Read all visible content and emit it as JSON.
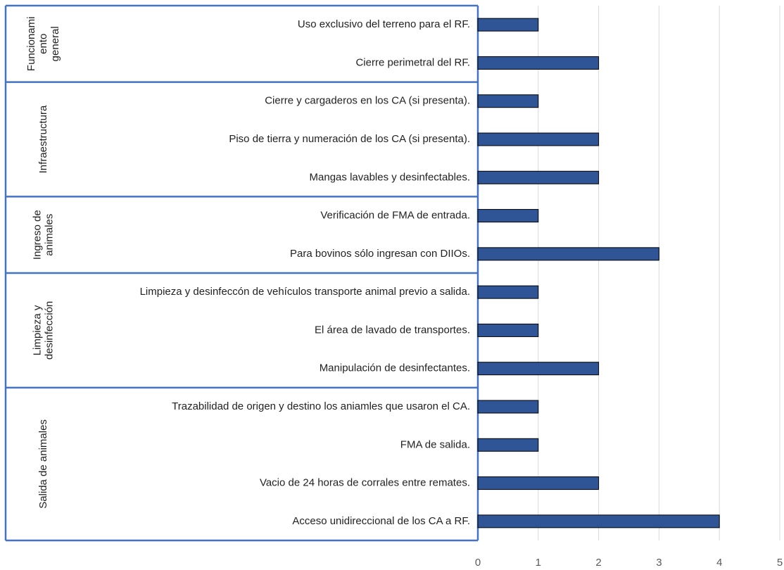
{
  "chart_data": {
    "type": "bar",
    "orientation": "horizontal",
    "color": "#2f5597",
    "border_color": "#4472c4",
    "grid": true,
    "xlim": [
      0,
      5
    ],
    "xticks": [
      0,
      1,
      2,
      3,
      4,
      5
    ],
    "groups": [
      {
        "label": [
          "Funcionami",
          "ento",
          "general"
        ],
        "categories": [
          "Uso exclusivo del terreno para el RF.",
          "Cierre perimetral del RF."
        ],
        "values": [
          1,
          2
        ]
      },
      {
        "label": [
          "Infraestructura"
        ],
        "categories": [
          "Cierre y cargaderos en los CA (si presenta).",
          "Piso de tierra y numeración de los CA (si presenta).",
          "Mangas lavables y desinfectables."
        ],
        "values": [
          1,
          2,
          2
        ]
      },
      {
        "label": [
          "Ingreso de",
          "animales"
        ],
        "categories": [
          "Verificación de FMA de entrada.",
          "Para bovinos sólo ingresan con DIIOs."
        ],
        "values": [
          1,
          3
        ]
      },
      {
        "label": [
          "Limpieza y",
          "desinfección"
        ],
        "categories": [
          "Limpieza y desinfeccón de vehículos transporte animal previo a salida.",
          "El área de lavado de transportes.",
          "Manipulación de desinfectantes."
        ],
        "values": [
          1,
          1,
          2
        ]
      },
      {
        "label": [
          "Salida de animales"
        ],
        "categories": [
          "Trazabilidad de origen y destino los aniamles que usaron el CA.",
          "FMA de salida.",
          "Vacio de 24 horas de corrales entre remates.",
          "Acceso unidireccional de los CA a RF."
        ],
        "values": [
          1,
          1,
          2,
          4
        ]
      }
    ]
  }
}
